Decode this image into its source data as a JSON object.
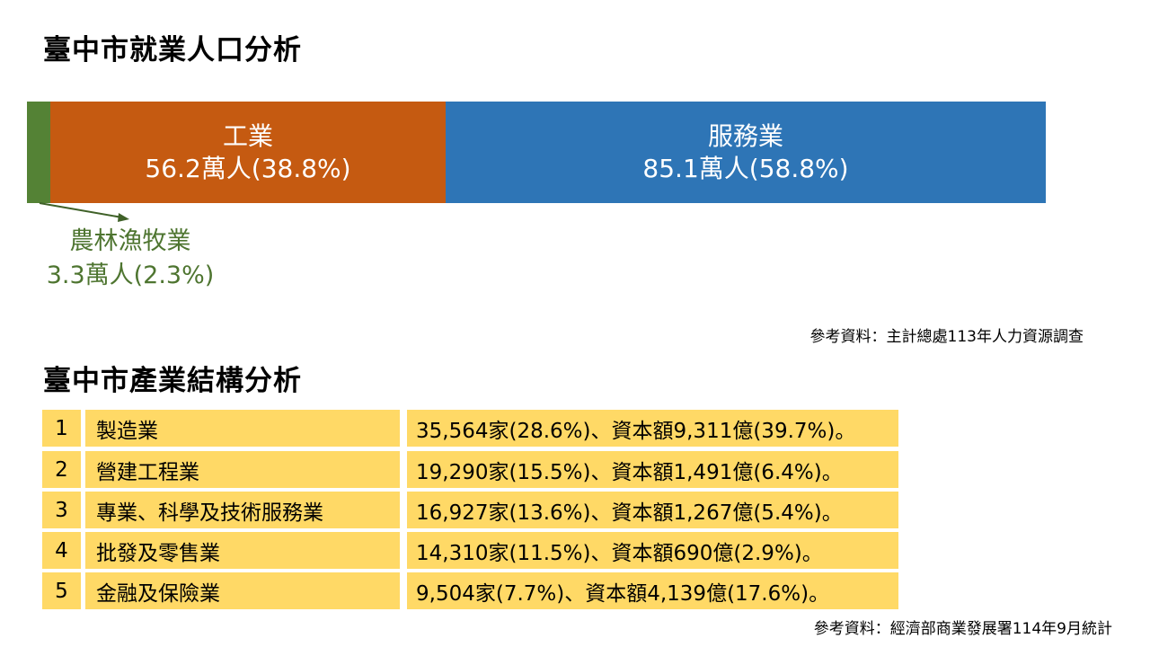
{
  "section1": {
    "title": "臺中市就業人口分析",
    "source": "參考資料：主計總處113年人力資源調查"
  },
  "section2": {
    "title": "臺中市產業結構分析",
    "source": "參考資料：經濟部商業發展署114年9月統計"
  },
  "chart_data": {
    "type": "bar",
    "stacked": true,
    "orientation": "horizontal",
    "title": "臺中市就業人口分析",
    "unit": "萬人",
    "series": [
      {
        "name": "農林漁牧業",
        "value": 3.3,
        "percent": 2.3,
        "label": "3.3萬人(2.3%)",
        "color": "#548235"
      },
      {
        "name": "工業",
        "value": 56.2,
        "percent": 38.8,
        "label": "56.2萬人(38.8%)",
        "color": "#C55A11"
      },
      {
        "name": "服務業",
        "value": 85.1,
        "percent": 58.8,
        "label": "85.1萬人(58.8%)",
        "color": "#2E75B6"
      }
    ]
  },
  "table": {
    "color": "#FFD966",
    "rows": [
      {
        "rank": "1",
        "industry": "製造業",
        "detail": "35,564家(28.6%)、資本額9,311億(39.7%)。"
      },
      {
        "rank": "2",
        "industry": "營建工程業",
        "detail": "19,290家(15.5%)、資本額1,491億(6.4%)。"
      },
      {
        "rank": "3",
        "industry": "專業、科學及技術服務業",
        "detail": "16,927家(13.6%)、資本額1,267億(5.4%)。"
      },
      {
        "rank": "4",
        "industry": "批發及零售業",
        "detail": "14,310家(11.5%)、資本額690億(2.9%)。"
      },
      {
        "rank": "5",
        "industry": "金融及保險業",
        "detail": "9,504家(7.7%)、資本額4,139億(17.6%)。"
      }
    ]
  }
}
